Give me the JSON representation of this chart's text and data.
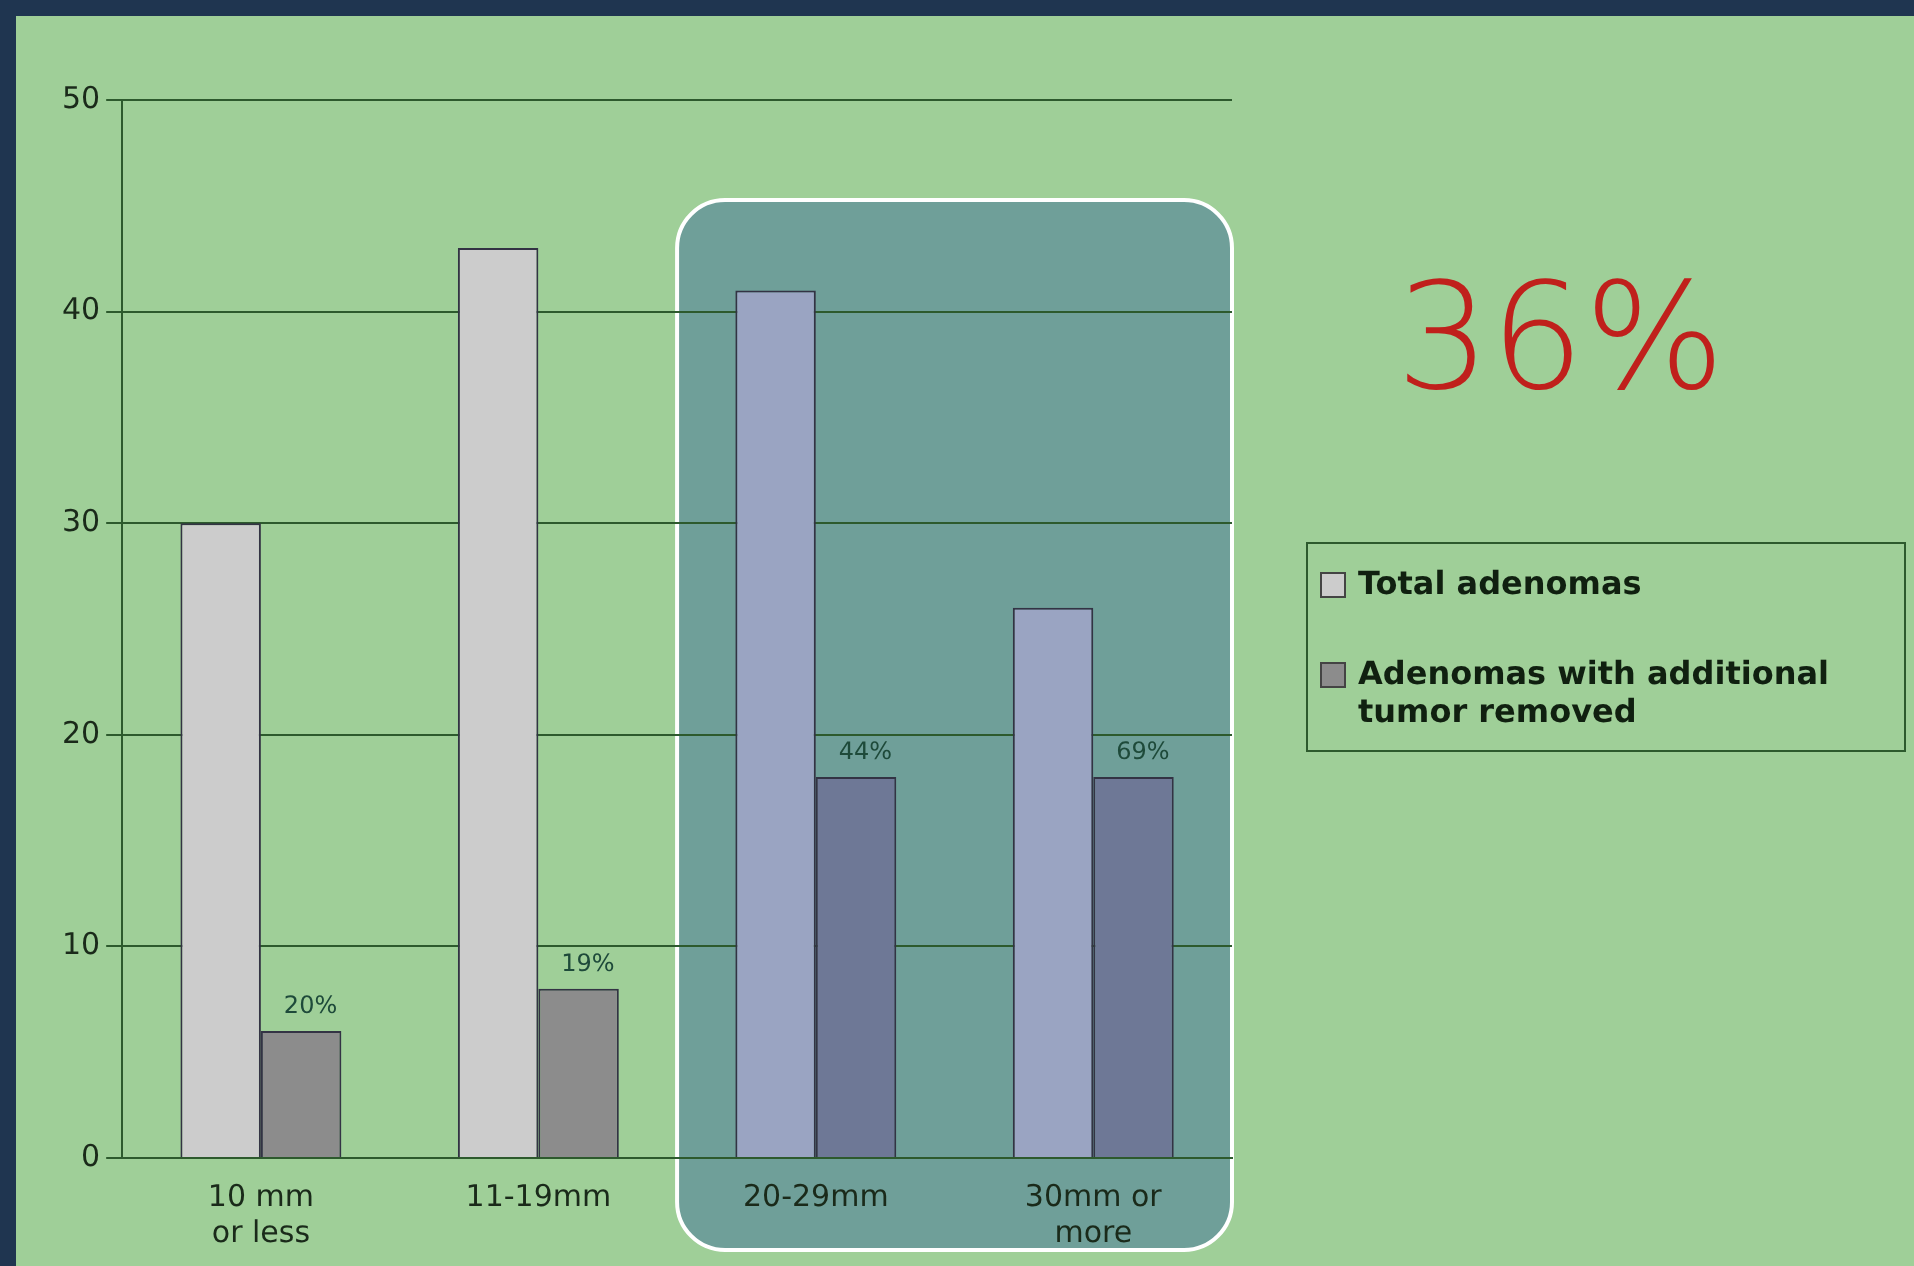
{
  "chart_data": {
    "type": "bar",
    "categories": [
      "10 mm or less",
      "11-19mm",
      "20-29mm",
      "30mm or more"
    ],
    "series": [
      {
        "name": "Total adenomas",
        "color": "#cccccc",
        "colors": [
          "#cccccc",
          "#cccccc",
          "#9aa4c2",
          "#9aa4c2"
        ],
        "values": [
          30,
          43,
          41,
          26
        ]
      },
      {
        "name": "Adenomas with additional tumor removed",
        "color": "#8c8c8c",
        "colors": [
          "#8c8c8c",
          "#8c8c8c",
          "#6e7896",
          "#6e7896"
        ],
        "values": [
          6,
          8,
          18,
          18
        ]
      }
    ],
    "ylim": [
      0,
      50
    ],
    "yticks": [
      0,
      10,
      20,
      30,
      40,
      50
    ],
    "grid": "y",
    "legend": "right",
    "bands": [
      {
        "axis": "x",
        "from": "20-29mm",
        "to": "30mm or more",
        "color": "#6f9f99"
      }
    ],
    "annotations": [
      "36%",
      {
        "text": "20%",
        "x": "10 mm or less",
        "y": 6
      },
      {
        "text": "19%",
        "x": "11-19mm",
        "y": 8
      },
      {
        "text": "44%",
        "x": "20-29mm",
        "y": 18
      },
      {
        "text": "69%",
        "x": "30mm or more",
        "y": 18
      }
    ]
  }
}
